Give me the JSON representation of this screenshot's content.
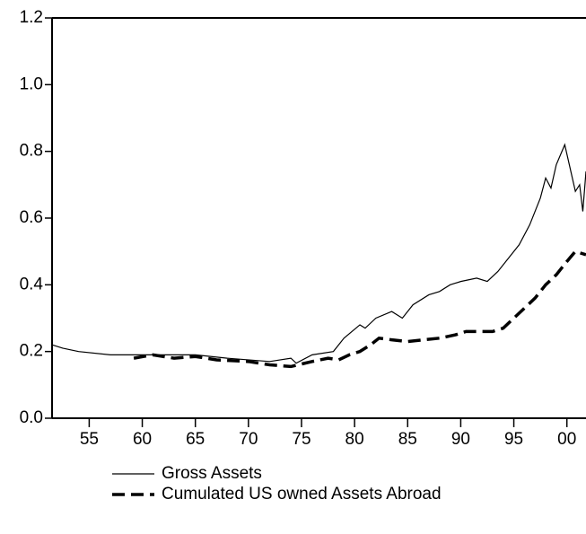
{
  "chart_data": {
    "type": "line",
    "xlim": [
      1951.5,
      2001.8
    ],
    "ylim": [
      0,
      1.2
    ],
    "xticks": [
      {
        "value": 1955,
        "label": "55"
      },
      {
        "value": 1960,
        "label": "60"
      },
      {
        "value": 1965,
        "label": "65"
      },
      {
        "value": 1970,
        "label": "70"
      },
      {
        "value": 1975,
        "label": "75"
      },
      {
        "value": 1980,
        "label": "80"
      },
      {
        "value": 1985,
        "label": "85"
      },
      {
        "value": 1990,
        "label": "90"
      },
      {
        "value": 1995,
        "label": "95"
      },
      {
        "value": 2000,
        "label": "00"
      }
    ],
    "yticks": [
      {
        "value": 0,
        "label": "0.0"
      },
      0.2,
      0.4,
      0.6,
      0.8,
      {
        "value": 1,
        "label": "1.0"
      },
      1.2
    ],
    "series": [
      {
        "name": "Gross Assets",
        "color": "#000000",
        "dash": false,
        "x": [
          1951.5,
          1952.5,
          1954,
          1957,
          1960,
          1962,
          1965,
          1968,
          1972,
          1974,
          1974.5,
          1976,
          1978,
          1979,
          1980.5,
          1981,
          1982,
          1983.5,
          1984.5,
          1985.5,
          1987,
          1988,
          1989,
          1990,
          1991.5,
          1992.5,
          1993.5,
          1994.5,
          1995.5,
          1996.5,
          1997.5,
          1998,
          1998.5,
          1999,
          1999.8,
          2000.3,
          2000.8,
          2001.2,
          2001.5,
          2001.8
        ],
        "values": [
          0.22,
          0.21,
          0.2,
          0.19,
          0.19,
          0.19,
          0.19,
          0.18,
          0.17,
          0.18,
          0.165,
          0.19,
          0.2,
          0.24,
          0.28,
          0.27,
          0.3,
          0.32,
          0.3,
          0.34,
          0.37,
          0.38,
          0.4,
          0.41,
          0.42,
          0.41,
          0.44,
          0.48,
          0.52,
          0.58,
          0.66,
          0.72,
          0.69,
          0.76,
          0.82,
          0.75,
          0.68,
          0.7,
          0.62,
          0.74
        ]
      },
      {
        "name": "Cumulated US owned Assets Abroad",
        "color": "#000000",
        "dash": true,
        "x": [
          1959.2,
          1961,
          1963,
          1965,
          1967,
          1970,
          1972,
          1974,
          1976,
          1977.5,
          1978.5,
          1979.5,
          1980.5,
          1981.5,
          1982.3,
          1983.5,
          1985,
          1986.5,
          1988,
          1989.5,
          1990.5,
          1993,
          1994,
          1995,
          1996,
          1997,
          1998,
          1999,
          2000,
          2000.8,
          2001.8
        ],
        "values": [
          0.18,
          0.19,
          0.18,
          0.185,
          0.175,
          0.17,
          0.16,
          0.155,
          0.17,
          0.18,
          0.175,
          0.19,
          0.2,
          0.22,
          0.24,
          0.235,
          0.23,
          0.235,
          0.24,
          0.25,
          0.26,
          0.26,
          0.27,
          0.3,
          0.33,
          0.36,
          0.4,
          0.43,
          0.47,
          0.5,
          0.49
        ]
      }
    ]
  }
}
